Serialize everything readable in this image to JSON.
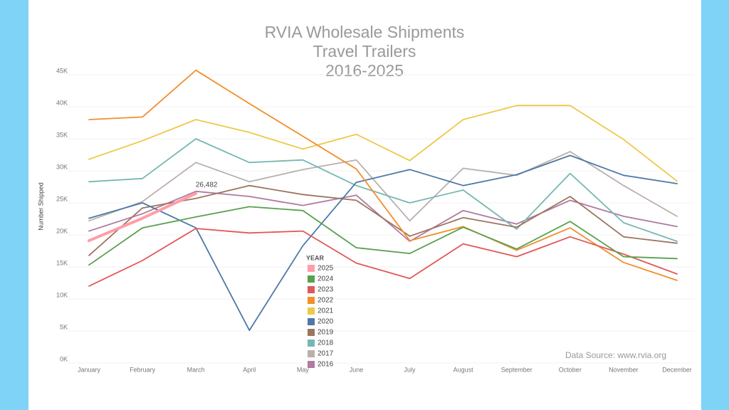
{
  "chart_data": {
    "type": "line",
    "title": [
      "RVIA Wholesale Shipments",
      "Travel Trailers",
      "2016-2025"
    ],
    "y_label": "Number Shipped",
    "legend_title": "YEAR",
    "annotation": "Data Source: www.rvia.org",
    "categories": [
      "January",
      "February",
      "March",
      "April",
      "May",
      "June",
      "July",
      "August",
      "September",
      "October",
      "November",
      "December"
    ],
    "ylim": [
      0,
      45000
    ],
    "yticks": [
      {
        "value": 0,
        "label": "0K"
      },
      {
        "value": 5000,
        "label": "5K"
      },
      {
        "value": 10000,
        "label": "10K"
      },
      {
        "value": 15000,
        "label": "15K"
      },
      {
        "value": 20000,
        "label": "20K"
      },
      {
        "value": 25000,
        "label": "25K"
      },
      {
        "value": 30000,
        "label": "30K"
      },
      {
        "value": 35000,
        "label": "35K"
      },
      {
        "value": 40000,
        "label": "40K"
      },
      {
        "value": 45000,
        "label": "45K"
      }
    ],
    "grid": true,
    "series": [
      {
        "name": "2025",
        "color": "#ff9da7",
        "values": [
          19100,
          22600,
          26482,
          null,
          null,
          null,
          null,
          null,
          null,
          null,
          null,
          null
        ],
        "value_labels": [
          null,
          null,
          "26,482",
          null,
          null,
          null,
          null,
          null,
          null,
          null,
          null,
          null
        ]
      },
      {
        "name": "2024",
        "color": "#59a14f",
        "values": [
          15300,
          21100,
          22800,
          24400,
          23800,
          18000,
          17100,
          21200,
          17800,
          22100,
          16600,
          16300
        ]
      },
      {
        "name": "2023",
        "color": "#e15759",
        "values": [
          12000,
          16000,
          21000,
          20300,
          20600,
          15600,
          13200,
          18600,
          16600,
          19700,
          17000,
          13900
        ]
      },
      {
        "name": "2022",
        "color": "#f28e2b",
        "values": [
          38000,
          38400,
          45700,
          40500,
          35400,
          30300,
          19100,
          21300,
          17600,
          21100,
          15700,
          12900
        ]
      },
      {
        "name": "2021",
        "color": "#edc948",
        "values": [
          31800,
          34700,
          38000,
          36000,
          33400,
          35700,
          31600,
          38000,
          40200,
          40200,
          34900,
          28400
        ]
      },
      {
        "name": "2020",
        "color": "#4e79a7",
        "values": [
          22600,
          25000,
          21100,
          5100,
          18300,
          28200,
          30200,
          27700,
          29400,
          32400,
          29300,
          28000
        ]
      },
      {
        "name": "2019",
        "color": "#9c755f",
        "values": [
          16800,
          24200,
          25700,
          27700,
          26300,
          25400,
          19800,
          22700,
          21200,
          26000,
          19700,
          18700
        ]
      },
      {
        "name": "2018",
        "color": "#76b7b2",
        "values": [
          28300,
          28800,
          35000,
          31300,
          31700,
          27700,
          25000,
          27000,
          20900,
          29600,
          21900,
          19000
        ]
      },
      {
        "name": "2017",
        "color": "#bab0ac",
        "values": [
          22200,
          25200,
          31300,
          28300,
          30200,
          31700,
          22200,
          30400,
          29300,
          33000,
          27700,
          22900
        ]
      },
      {
        "name": "2016",
        "color": "#b07aa1",
        "values": [
          20600,
          23300,
          26800,
          26000,
          24600,
          26200,
          19000,
          23800,
          21700,
          25400,
          22900,
          21300
        ]
      }
    ]
  }
}
